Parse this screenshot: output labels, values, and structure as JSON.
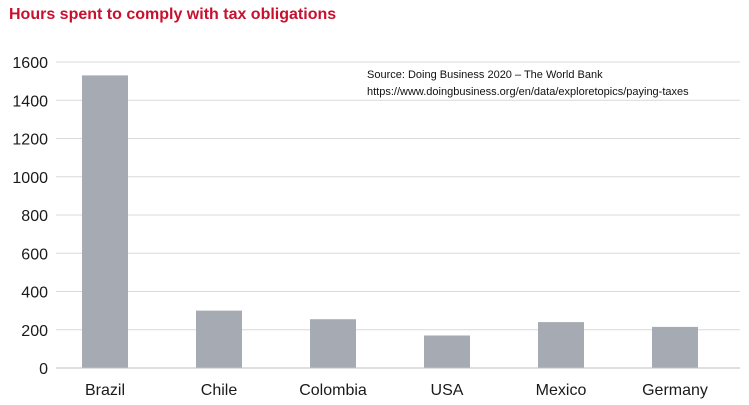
{
  "chart_data": {
    "type": "bar",
    "title": "Hours spent to comply with tax obligations",
    "source_line1": "Source: Doing Business 2020 – The World Bank",
    "source_line2": "https://www.doingbusiness.org/en/data/exploretopics/paying-taxes",
    "categories": [
      "Brazil",
      "Chile",
      "Colombia",
      "USA",
      "Mexico",
      "Germany"
    ],
    "values": [
      1530,
      300,
      255,
      170,
      240,
      215
    ],
    "ylim": [
      0,
      1600
    ],
    "yticks": [
      0,
      200,
      400,
      600,
      800,
      1000,
      1200,
      1400,
      1600
    ],
    "xlabel": "",
    "ylabel": "",
    "grid": true,
    "bar_color": "#a6abb3",
    "grid_color": "#d9d9d9",
    "title_color": "#c8102e"
  }
}
